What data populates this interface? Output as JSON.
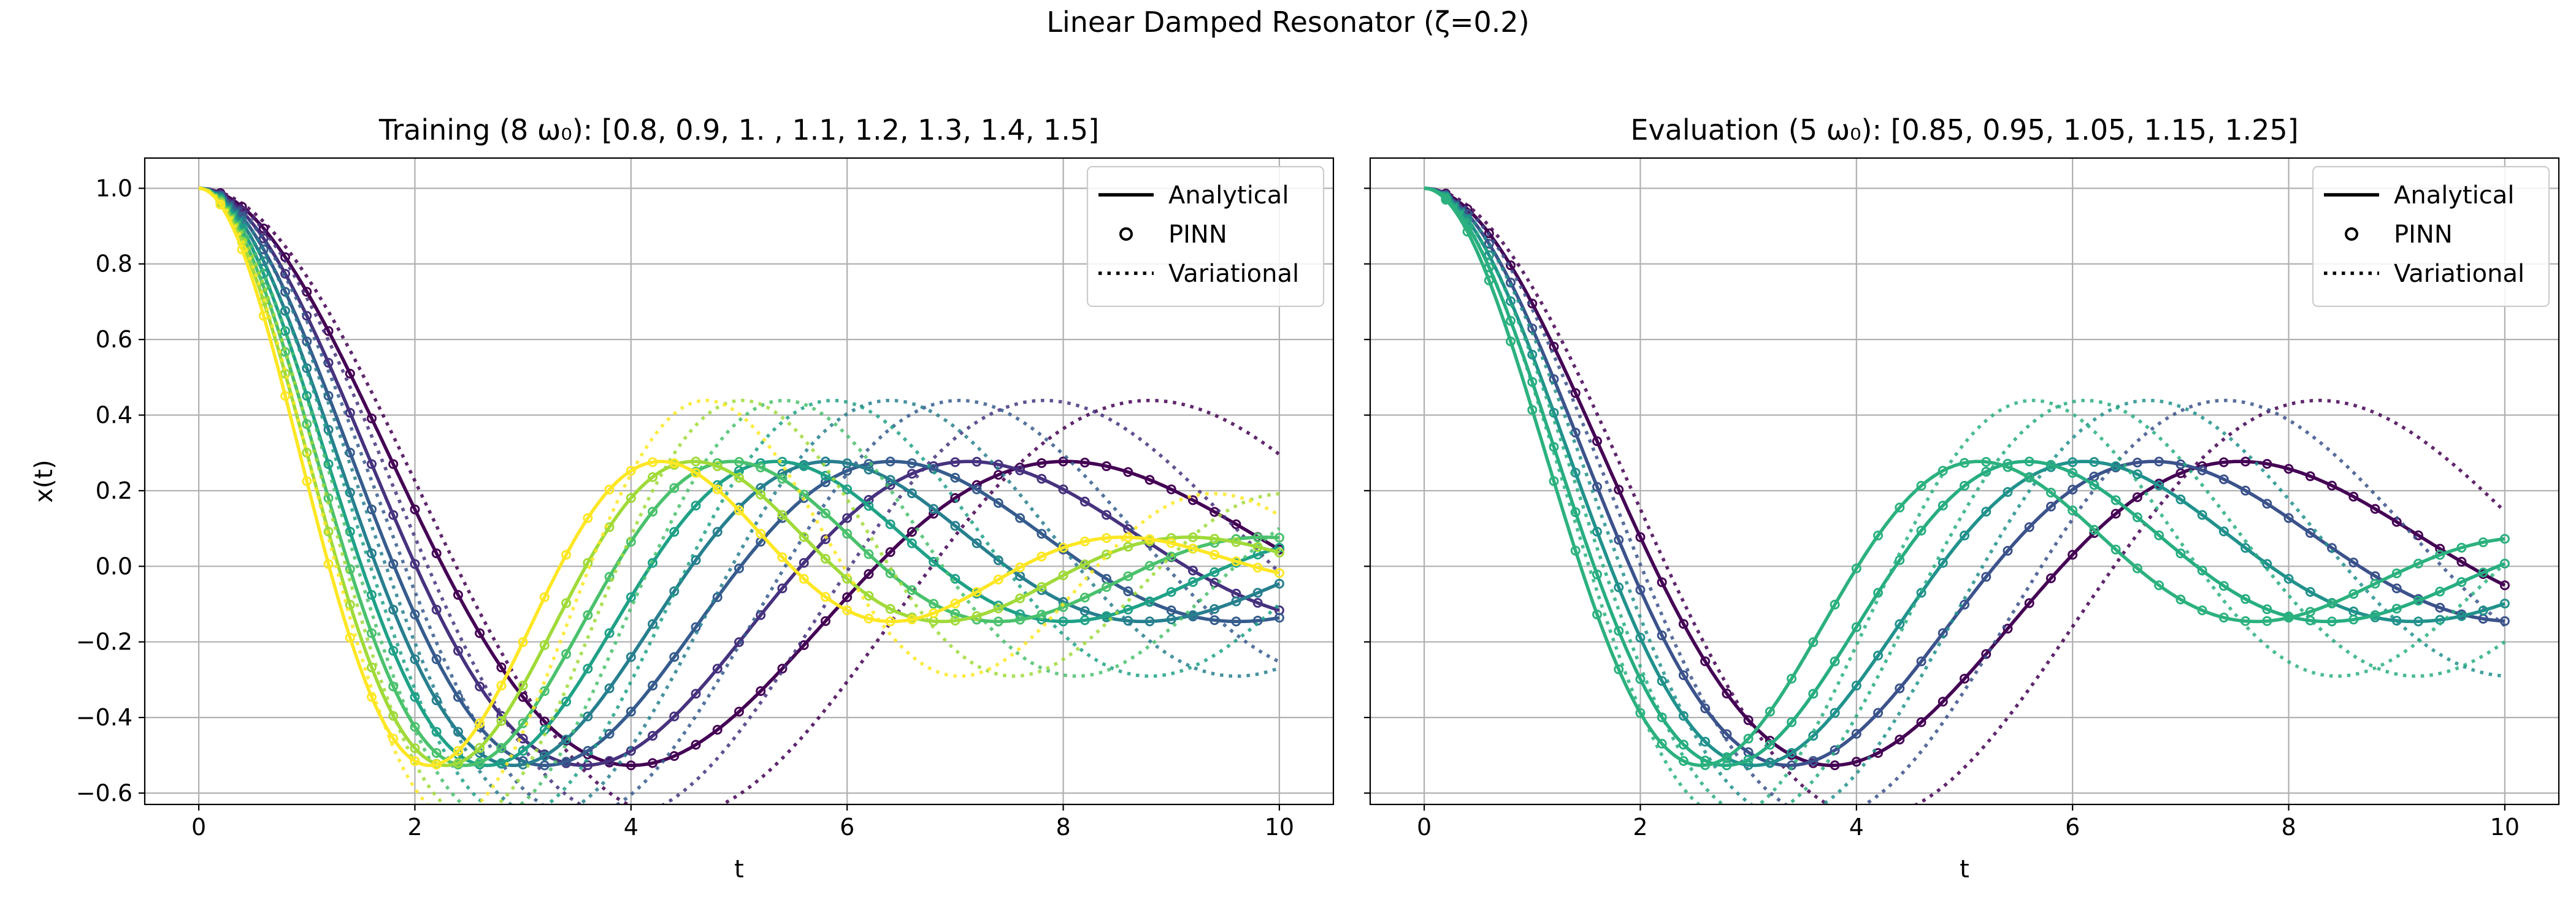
{
  "figure": {
    "suptitle": "Linear Damped Resonator  (ζ=0.2)"
  },
  "chart_data": [
    {
      "type": "line",
      "title": "Training (8 ω₀): [0.8, 0.9, 1. , 1.1, 1.2, 1.3, 1.4, 1.5]",
      "xlabel": "t",
      "ylabel": "x(t)",
      "xlim": [
        -0.5,
        10.5
      ],
      "ylim": [
        -0.63,
        1.08
      ],
      "xticks": [
        0,
        2,
        4,
        6,
        8,
        10
      ],
      "yticks": [
        -0.6,
        -0.4,
        -0.2,
        0.0,
        0.2,
        0.4,
        0.6,
        0.8,
        1.0
      ],
      "grid": true,
      "legend": {
        "placement": "top-right",
        "entries": [
          "Analytical",
          "PINN",
          "Variational"
        ]
      },
      "colormap": "viridis",
      "zeta": 0.2,
      "omega0": [
        0.8,
        0.9,
        1.0,
        1.1,
        1.2,
        1.3,
        1.4,
        1.5
      ],
      "colors": [
        "#440154",
        "#46327e",
        "#365c8d",
        "#277f8e",
        "#1fa187",
        "#4ac16d",
        "#a0da39",
        "#fde725"
      ],
      "t_range": [
        0,
        10
      ],
      "marker_times": [
        0.2,
        0.4,
        0.6,
        0.8,
        1.0,
        1.2,
        1.4,
        1.6,
        1.8,
        2.0,
        2.2,
        2.4,
        2.6,
        2.8,
        3.0,
        3.2,
        3.4,
        3.6,
        3.8,
        4.0,
        4.2,
        4.4,
        4.6,
        4.8,
        5.0,
        5.2,
        5.4,
        5.6,
        5.8,
        6.0,
        6.2,
        6.4,
        6.6,
        6.8,
        7.0,
        7.2,
        7.4,
        7.6,
        7.8,
        8.0,
        8.2,
        8.4,
        8.6,
        8.8,
        9.0,
        9.2,
        9.4,
        9.6,
        9.8,
        10.0
      ],
      "variational_omega_scale": 0.9,
      "variational_zeta": 0.13
    },
    {
      "type": "line",
      "title": "Evaluation (5 ω₀): [0.85, 0.95, 1.05, 1.15, 1.25]",
      "xlabel": "t",
      "ylabel": "",
      "xlim": [
        -0.5,
        10.5
      ],
      "ylim": [
        -0.63,
        1.08
      ],
      "xticks": [
        0,
        2,
        4,
        6,
        8,
        10
      ],
      "yticks": [
        -0.6,
        -0.4,
        -0.2,
        0.0,
        0.2,
        0.4,
        0.6,
        0.8,
        1.0
      ],
      "grid": true,
      "legend": {
        "placement": "top-right",
        "entries": [
          "Analytical",
          "PINN",
          "Variational"
        ]
      },
      "colormap": "viridis",
      "zeta": 0.2,
      "omega0": [
        0.85,
        0.95,
        1.05,
        1.15,
        1.25
      ],
      "colors": [
        "#440154",
        "#3b528b",
        "#21918c",
        "#27ad81",
        "#2cb17e"
      ],
      "t_range": [
        0,
        10
      ],
      "marker_times": [
        0.2,
        0.4,
        0.6,
        0.8,
        1.0,
        1.2,
        1.4,
        1.6,
        1.8,
        2.0,
        2.2,
        2.4,
        2.6,
        2.8,
        3.0,
        3.2,
        3.4,
        3.6,
        3.8,
        4.0,
        4.2,
        4.4,
        4.6,
        4.8,
        5.0,
        5.2,
        5.4,
        5.6,
        5.8,
        6.0,
        6.2,
        6.4,
        6.6,
        6.8,
        7.0,
        7.2,
        7.4,
        7.6,
        7.8,
        8.0,
        8.2,
        8.4,
        8.6,
        8.8,
        9.0,
        9.2,
        9.4,
        9.6,
        9.8,
        10.0
      ],
      "variational_omega_scale": 0.9,
      "variational_zeta": 0.13
    }
  ]
}
